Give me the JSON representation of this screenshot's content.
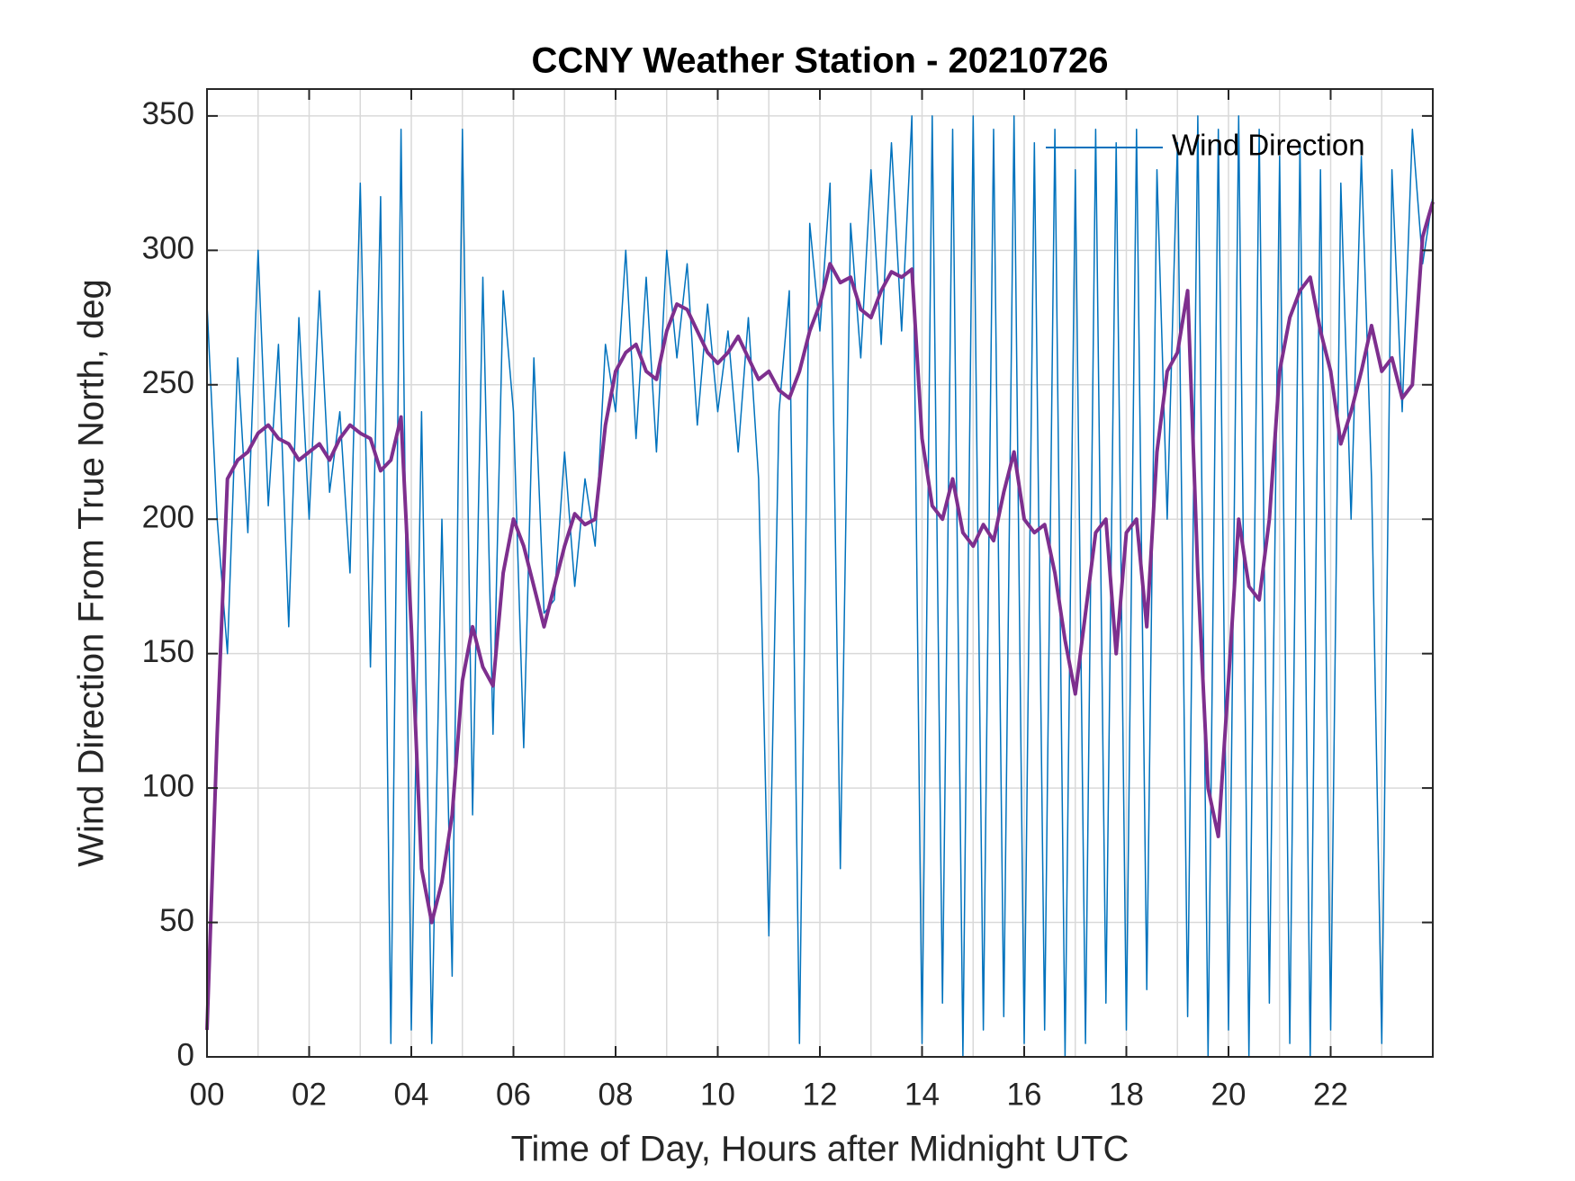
{
  "chart_data": {
    "type": "line",
    "title": "CCNY Weather Station - 20210726",
    "xlabel": "Time of Day, Hours after Midnight UTC",
    "ylabel": "Wind Direction From True North, deg",
    "x": [
      0,
      0.2,
      0.4,
      0.6,
      0.8,
      1,
      1.2,
      1.4,
      1.6,
      1.8,
      2,
      2.2,
      2.4,
      2.6,
      2.8,
      3,
      3.2,
      3.4,
      3.6,
      3.8,
      4,
      4.2,
      4.4,
      4.6,
      4.8,
      5,
      5.2,
      5.4,
      5.6,
      5.8,
      6,
      6.2,
      6.4,
      6.6,
      6.8,
      7,
      7.2,
      7.4,
      7.6,
      7.8,
      8,
      8.2,
      8.4,
      8.6,
      8.8,
      9,
      9.2,
      9.4,
      9.6,
      9.8,
      10,
      10.2,
      10.4,
      10.6,
      10.8,
      11,
      11.2,
      11.4,
      11.6,
      11.8,
      12,
      12.2,
      12.4,
      12.6,
      12.8,
      13,
      13.2,
      13.4,
      13.6,
      13.8,
      14,
      14.2,
      14.4,
      14.6,
      14.8,
      15,
      15.2,
      15.4,
      15.6,
      15.8,
      16,
      16.2,
      16.4,
      16.6,
      16.8,
      17,
      17.2,
      17.4,
      17.6,
      17.8,
      18,
      18.2,
      18.4,
      18.6,
      18.8,
      19,
      19.2,
      19.4,
      19.6,
      19.8,
      20,
      20.2,
      20.4,
      20.6,
      20.8,
      21,
      21.2,
      21.4,
      21.6,
      21.8,
      22,
      22.2,
      22.4,
      22.6,
      22.8,
      23,
      23.2,
      23.4,
      23.6,
      23.8,
      24
    ],
    "series": [
      {
        "name": "Wind Direction",
        "color": "#0072BD",
        "width": 1.5,
        "values": [
          280,
          200,
          150,
          260,
          195,
          300,
          205,
          265,
          160,
          275,
          200,
          285,
          210,
          240,
          180,
          325,
          145,
          320,
          5,
          345,
          10,
          240,
          5,
          200,
          30,
          345,
          90,
          290,
          120,
          285,
          240,
          115,
          260,
          165,
          170,
          225,
          175,
          215,
          190,
          265,
          240,
          300,
          230,
          290,
          225,
          300,
          260,
          295,
          235,
          280,
          240,
          270,
          225,
          275,
          215,
          45,
          240,
          285,
          5,
          310,
          270,
          325,
          70,
          310,
          260,
          330,
          265,
          340,
          270,
          350,
          5,
          350,
          20,
          345,
          0,
          350,
          10,
          345,
          15,
          350,
          5,
          340,
          10,
          345,
          0,
          330,
          5,
          345,
          20,
          340,
          10,
          345,
          25,
          330,
          200,
          340,
          15,
          350,
          0,
          345,
          10,
          350,
          0,
          345,
          20,
          335,
          5,
          340,
          0,
          330,
          10,
          325,
          200,
          335,
          215,
          5,
          330,
          240,
          345,
          295,
          320
        ]
      },
      {
        "color": "#7E2F8E",
        "width": 4,
        "values": [
          10,
          120,
          215,
          222,
          225,
          232,
          235,
          230,
          228,
          222,
          225,
          228,
          222,
          230,
          235,
          232,
          230,
          218,
          222,
          238,
          160,
          70,
          50,
          65,
          90,
          140,
          160,
          145,
          138,
          180,
          200,
          190,
          175,
          160,
          175,
          190,
          202,
          198,
          200,
          235,
          255,
          262,
          265,
          255,
          252,
          270,
          280,
          278,
          270,
          262,
          258,
          262,
          268,
          260,
          252,
          255,
          248,
          245,
          255,
          270,
          280,
          295,
          288,
          290,
          278,
          275,
          285,
          292,
          290,
          293,
          230,
          205,
          200,
          215,
          195,
          190,
          198,
          192,
          210,
          225,
          200,
          195,
          198,
          180,
          155,
          135,
          165,
          195,
          200,
          150,
          195,
          200,
          160,
          225,
          255,
          262,
          285,
          180,
          100,
          82,
          140,
          200,
          175,
          170,
          200,
          255,
          275,
          285,
          290,
          270,
          255,
          228,
          240,
          255,
          272,
          255,
          260,
          245,
          250,
          305,
          318
        ]
      }
    ],
    "xlim": [
      0,
      24
    ],
    "ylim": [
      0,
      360
    ],
    "xticks": [
      {
        "value": 0,
        "label": "00"
      },
      {
        "value": 2,
        "label": "02"
      },
      {
        "value": 4,
        "label": "04"
      },
      {
        "value": 6,
        "label": "06"
      },
      {
        "value": 8,
        "label": "08"
      },
      {
        "value": 10,
        "label": "10"
      },
      {
        "value": 12,
        "label": "12"
      },
      {
        "value": 14,
        "label": "14"
      },
      {
        "value": 16,
        "label": "16"
      },
      {
        "value": 18,
        "label": "18"
      },
      {
        "value": 20,
        "label": "20"
      },
      {
        "value": 22,
        "label": "22"
      }
    ],
    "xgrid": [
      1,
      3,
      5,
      7,
      9,
      11,
      13,
      15,
      17,
      19,
      21,
      23
    ],
    "yticks": [
      0,
      50,
      100,
      150,
      200,
      250,
      300,
      350
    ],
    "grid": true,
    "legend": "upper right"
  }
}
